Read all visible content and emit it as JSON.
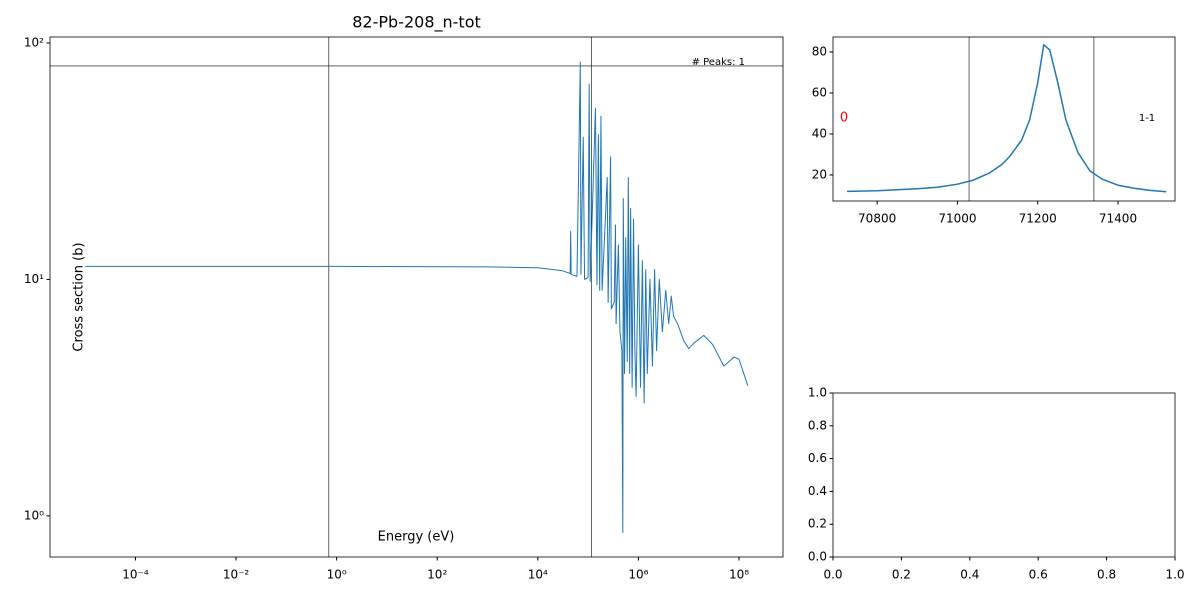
{
  "chart_data": [
    {
      "type": "line",
      "title": "82-Pb-208_n-tot",
      "x_label": "Energy (eV)",
      "y_label": "Cross section (b)",
      "annotation": "# Peaks: 1",
      "x_log": true,
      "y_log": true,
      "xlim": [
        2e-06,
        750000000.0
      ],
      "ylim": [
        0.67,
        106
      ],
      "xticks": [
        {
          "value": 0.0001,
          "label": "10⁻⁴"
        },
        {
          "value": 0.01,
          "label": "10⁻²"
        },
        {
          "value": 1,
          "label": "10⁰"
        },
        {
          "value": 100,
          "label": "10²"
        },
        {
          "value": 10000,
          "label": "10⁴"
        },
        {
          "value": 1000000,
          "label": "10⁶"
        },
        {
          "value": 100000000,
          "label": "10⁸"
        }
      ],
      "yticks": [
        {
          "value": 1,
          "label": "10⁰"
        },
        {
          "value": 10,
          "label": "10¹"
        },
        {
          "value": 100,
          "label": "10²"
        }
      ],
      "vlines": [
        0.7,
        116000
      ],
      "hlines": [
        80
      ],
      "series": [
        {
          "color": "#1f77b4",
          "x": [
            1e-05,
            0.001,
            1,
            1000,
            10000,
            30000,
            44000,
            45000,
            46000,
            60000,
            70000,
            72000,
            80000,
            85000,
            100000,
            105000,
            110000,
            140000,
            150000,
            160000,
            170000,
            180000,
            190000,
            240000,
            250000,
            280000,
            290000,
            330000,
            350000,
            360000,
            400000,
            430000,
            470000,
            490000,
            500000,
            530000,
            560000,
            600000,
            630000,
            670000,
            700000,
            750000,
            800000,
            850000,
            900000,
            1000000,
            1100000,
            1200000,
            1300000,
            1400000,
            1500000,
            1700000,
            1900000,
            2100000,
            2300000,
            2600000,
            3000000,
            3500000,
            4000000,
            4500000,
            5000000,
            6000000,
            8000000,
            10000000,
            13000000,
            20000000,
            30000000,
            50000000,
            80000000,
            100000000,
            150000000
          ],
          "values": [
            11.35,
            11.35,
            11.35,
            11.3,
            11.2,
            10.9,
            10.6,
            16,
            10.5,
            10.3,
            83,
            10.5,
            40,
            10,
            10.2,
            67,
            9.8,
            53,
            9.5,
            41,
            9,
            49,
            9,
            27,
            8,
            33,
            7.5,
            8,
            17,
            6.5,
            14,
            6,
            5,
            0.85,
            22,
            4,
            15,
            4.5,
            27,
            4,
            20,
            3.5,
            18,
            5,
            3.2,
            14,
            3.5,
            12,
            3,
            11,
            4,
            10,
            4.3,
            11,
            5,
            10,
            6,
            9,
            6.5,
            8.5,
            7,
            6.5,
            5.5,
            5.1,
            5.4,
            5.8,
            5.3,
            4.3,
            4.7,
            4.6,
            3.55
          ]
        }
      ]
    },
    {
      "type": "line",
      "xlim": [
        70690,
        71542
      ],
      "ylim": [
        7.3,
        87.3
      ],
      "xticks": [
        70800,
        71000,
        71200,
        71400
      ],
      "yticks": [
        20,
        40,
        60,
        80
      ],
      "vlines": [
        71029,
        71340
      ],
      "annotations": [
        {
          "text": "0",
          "color": "red"
        },
        {
          "text": "1-1",
          "color": "black"
        }
      ],
      "series": [
        {
          "color": "#1f77b4",
          "x": [
            70725,
            70800,
            70900,
            70950,
            71000,
            71040,
            71080,
            71110,
            71130,
            71160,
            71180,
            71200,
            71215,
            71230,
            71250,
            71270,
            71300,
            71330,
            71360,
            71400,
            71440,
            71480,
            71520
          ],
          "values": [
            12,
            12.3,
            13.3,
            14,
            15.5,
            17.5,
            21,
            25,
            29,
            37,
            47,
            65,
            83.5,
            81,
            65,
            47,
            31,
            22,
            18,
            15,
            13.5,
            12.5,
            11.8
          ]
        }
      ]
    },
    {
      "type": "line",
      "xlim": [
        0,
        1
      ],
      "ylim": [
        0,
        1
      ],
      "xticks": [
        {
          "value": 0,
          "label": "0.0"
        },
        {
          "value": 0.2,
          "label": "0.2"
        },
        {
          "value": 0.4,
          "label": "0.4"
        },
        {
          "value": 0.6,
          "label": "0.6"
        },
        {
          "value": 0.8,
          "label": "0.8"
        },
        {
          "value": 1,
          "label": "1.0"
        }
      ],
      "yticks": [
        {
          "value": 0,
          "label": "0.0"
        },
        {
          "value": 0.2,
          "label": "0.2"
        },
        {
          "value": 0.4,
          "label": "0.4"
        },
        {
          "value": 0.6,
          "label": "0.6"
        },
        {
          "value": 0.8,
          "label": "0.8"
        },
        {
          "value": 1,
          "label": "1.0"
        }
      ],
      "series": []
    }
  ]
}
